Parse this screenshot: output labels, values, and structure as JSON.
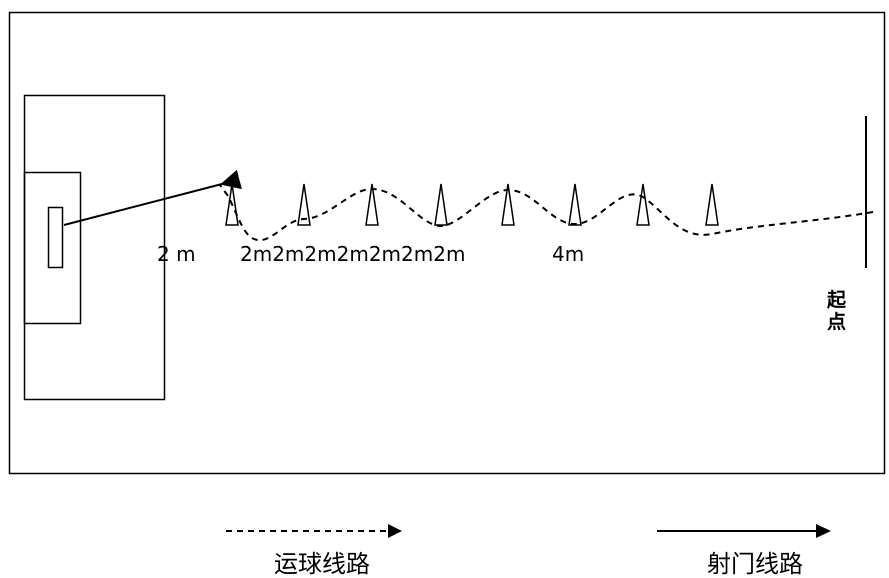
{
  "field": {
    "distance_labels": [
      "2 m",
      "2m2m2m2m2m2m2m",
      "4m"
    ],
    "start_label_lines": [
      "起",
      "点"
    ]
  },
  "legend": {
    "dribble_label": "运球线路",
    "shot_label": "射门线路"
  },
  "colors": {
    "line": "#000000",
    "background": "#ffffff"
  }
}
